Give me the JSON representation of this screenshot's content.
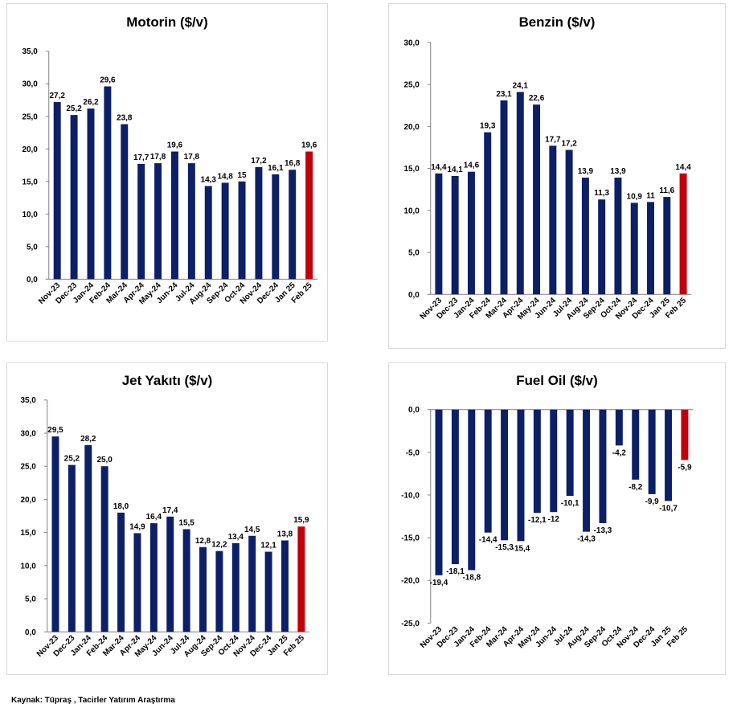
{
  "source": "Kaynak: Tüpraş , Tacirler Yatırım Araştırma",
  "colors": {
    "bar": "#0d1f66",
    "highlight": "#c0000d",
    "grid": "#d9d9d9",
    "axis": "#808080"
  },
  "chart_data": [
    {
      "type": "bar",
      "title": "Motorin ($/v)",
      "categories": [
        "Nov-23",
        "Dec-23",
        "Jan-24",
        "Feb-24",
        "Mar-24",
        "Apr-24",
        "May-24",
        "Jun-24",
        "Jul-24",
        "Aug-24",
        "Sep-24",
        "Oct-24",
        "Nov-24",
        "Dec-24",
        "Jan 25",
        "Feb 25"
      ],
      "values": [
        27.2,
        25.2,
        26.2,
        29.6,
        23.8,
        17.7,
        17.8,
        19.6,
        17.8,
        14.3,
        14.8,
        15,
        17.2,
        16.1,
        16.8,
        19.6
      ],
      "value_labels": [
        "27,2",
        "25,2",
        "26,2",
        "29,6",
        "23,8",
        "17,7",
        "17,8",
        "19,6",
        "17,8",
        "14,3",
        "14,8",
        "15",
        "17,2",
        "16,1",
        "16,8",
        "19,6"
      ],
      "yticks": [
        "0,0",
        "5,0",
        "10,0",
        "15,0",
        "20,0",
        "25,0",
        "30,0",
        "35,0"
      ],
      "ylim": [
        0,
        35
      ],
      "highlight_last": true
    },
    {
      "type": "bar",
      "title": "Benzin ($/v)",
      "categories": [
        "Nov-23",
        "Dec-23",
        "Jan-24",
        "Feb-24",
        "Mar-24",
        "Apr-24",
        "May-24",
        "Jun-24",
        "Jul-24",
        "Aug-24",
        "Sep-24",
        "Oct-24",
        "Nov-24",
        "Dec-24",
        "Jan 25",
        "Feb 25"
      ],
      "values": [
        14.4,
        14.1,
        14.6,
        19.3,
        23.1,
        24.1,
        22.6,
        17.7,
        17.2,
        13.9,
        11.3,
        13.9,
        10.9,
        11,
        11.6,
        14.4
      ],
      "value_labels": [
        "14,4",
        "14,1",
        "14,6",
        "19,3",
        "23,1",
        "24,1",
        "22,6",
        "17,7",
        "17,2",
        "13,9",
        "11,3",
        "13,9",
        "10,9",
        "11",
        "11,6",
        "14,4"
      ],
      "yticks": [
        "0,0",
        "5,0",
        "10,0",
        "15,0",
        "20,0",
        "25,0",
        "30,0"
      ],
      "ylim": [
        0,
        30
      ],
      "highlight_last": true
    },
    {
      "type": "bar",
      "title": "Jet Yakıtı ($/v)",
      "categories": [
        "Nov-23",
        "Dec-23",
        "Jan-24",
        "Feb-24",
        "Mar-24",
        "Apr-24",
        "May-24",
        "Jun-24",
        "Jul-24",
        "Aug-24",
        "Sep-24",
        "Oct-24",
        "Nov-24",
        "Dec-24",
        "Jan 25",
        "Feb 25"
      ],
      "values": [
        29.5,
        25.2,
        28.2,
        25,
        18,
        14.9,
        16.4,
        17.4,
        15.5,
        12.8,
        12.2,
        13.4,
        14.5,
        12.1,
        13.8,
        15.9
      ],
      "value_labels": [
        "29,5",
        "25,2",
        "28,2",
        "25,0",
        "18,0",
        "14,9",
        "16,4",
        "17,4",
        "15,5",
        "12,8",
        "12,2",
        "13,4",
        "14,5",
        "12,1",
        "13,8",
        "15,9"
      ],
      "yticks": [
        "0,0",
        "5,0",
        "10,0",
        "15,0",
        "20,0",
        "25,0",
        "30,0",
        "35,0"
      ],
      "ylim": [
        0,
        35
      ],
      "highlight_last": true
    },
    {
      "type": "bar",
      "title": "Fuel Oil ($/v)",
      "categories": [
        "Nov-23",
        "Dec-23",
        "Jan-24",
        "Feb-24",
        "Mar-24",
        "Apr-24",
        "May-24",
        "Jun-24",
        "Jul-24",
        "Aug-24",
        "Sep-24",
        "Oct-24",
        "Nov-24",
        "Dec-24",
        "Jan 25",
        "Feb 25"
      ],
      "values": [
        -19.4,
        -18.1,
        -18.8,
        -14.4,
        -15.3,
        -15.4,
        -12.1,
        -12,
        -10.1,
        -14.3,
        -13.3,
        -4.2,
        -8.2,
        -9.9,
        -10.7,
        -5.9
      ],
      "value_labels": [
        "-19,4",
        "-18,1",
        "-18,8",
        "-14,4",
        "-15,3",
        "-15,4",
        "-12,1",
        "-12",
        "-10,1",
        "-14,3",
        "-13,3",
        "-4,2",
        "-8,2",
        "-9,9",
        "-10,7",
        "-5,9"
      ],
      "yticks": [
        "-25,0",
        "-20,0",
        "-15,0",
        "-10,0",
        "-5,0",
        "0,0"
      ],
      "ylim": [
        -25,
        0
      ],
      "highlight_last": true
    }
  ]
}
